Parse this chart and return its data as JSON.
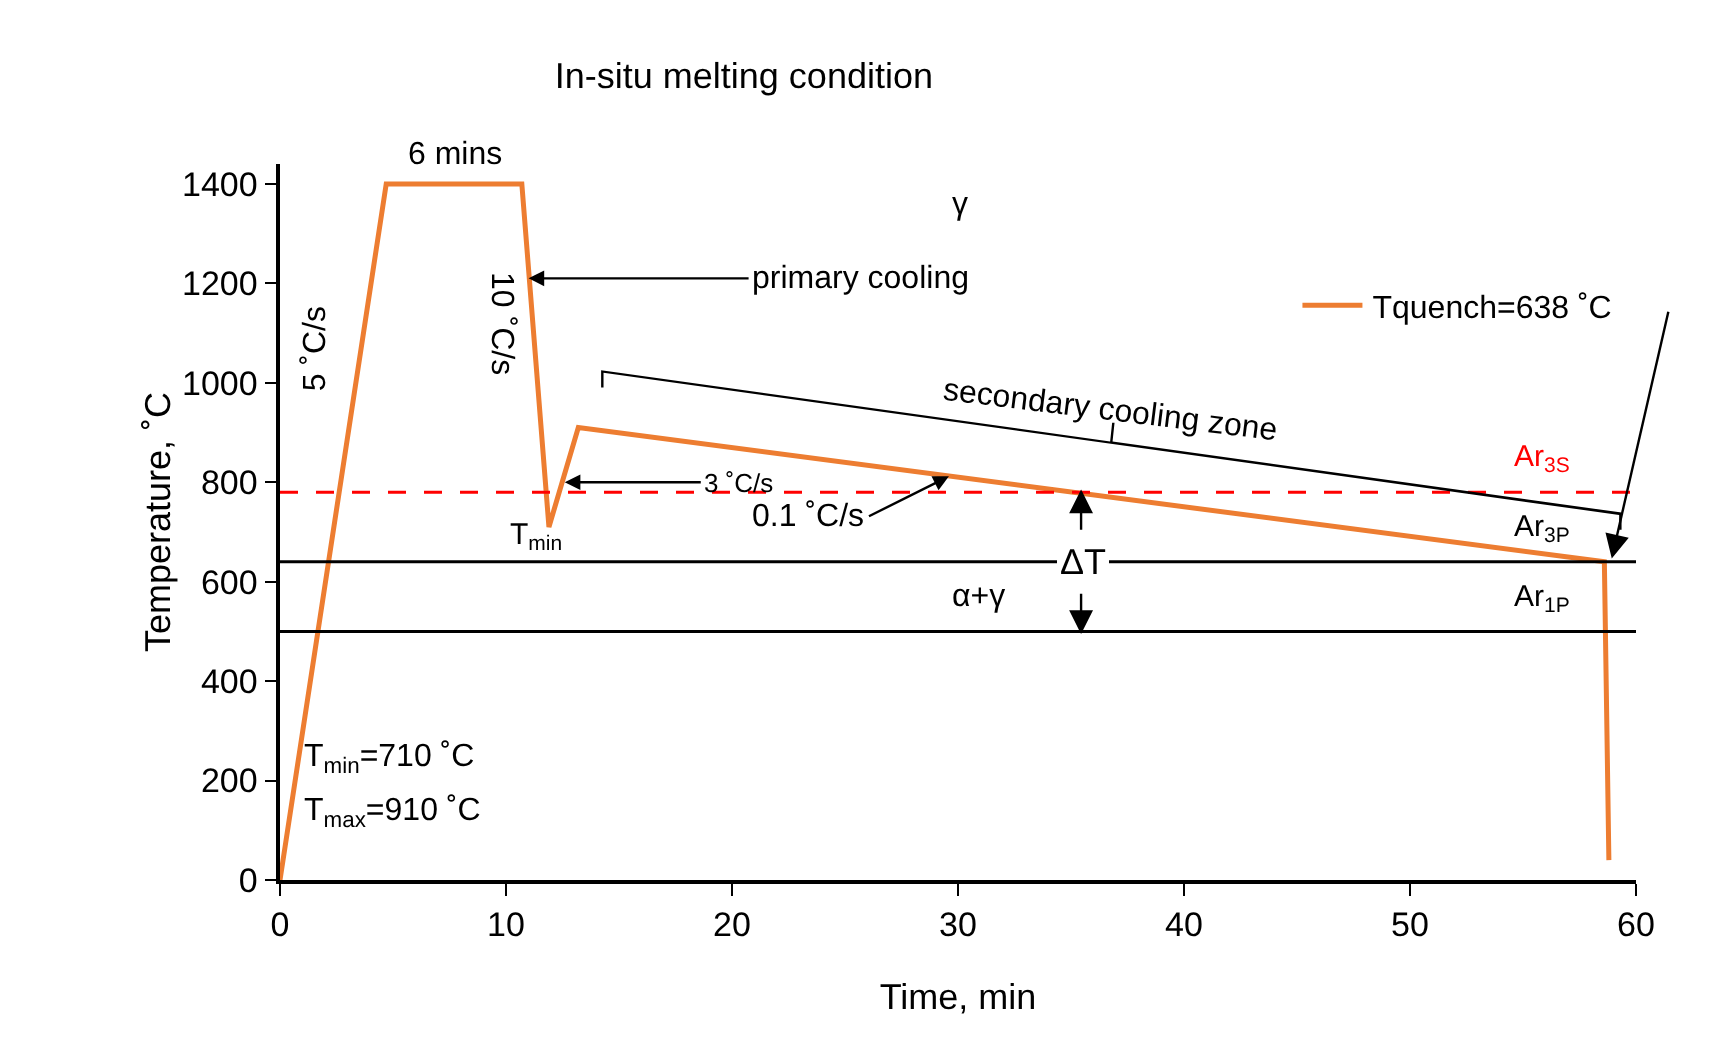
{
  "chart_data": {
    "type": "line",
    "title": "In-situ melting condition",
    "xlabel": "Time, min",
    "ylabel": "Temperature, ˚C",
    "series": [
      {
        "name": "Tquench=638 ˚C",
        "color": "#ed7d31",
        "x": [
          0,
          4.7,
          10.7,
          11.9,
          13.2,
          58.6,
          58.8
        ],
        "values": [
          0,
          1400,
          1400,
          710,
          910,
          640,
          40
        ]
      }
    ],
    "xlim": [
      0,
      60
    ],
    "xticks": [
      0,
      10,
      20,
      30,
      40,
      50,
      60
    ],
    "ylim": [
      0,
      1440
    ],
    "yticks": [
      0,
      200,
      400,
      600,
      800,
      1000,
      1200,
      1400
    ],
    "grid": false,
    "legend": "top right",
    "marker": "none",
    "line_style": "solid",
    "ref_lines": [
      {
        "axis": "y",
        "value": 780,
        "label": "Ar$_{3S}$",
        "color": "#ff0000",
        "line_style": "dashed"
      },
      {
        "axis": "y",
        "value": 640,
        "label": "Ar$_{3P}$",
        "color": "#000000",
        "line_style": "solid"
      },
      {
        "axis": "y",
        "value": 500,
        "label": "Ar$_{1P}$",
        "color": "#000000",
        "line_style": "solid"
      }
    ],
    "annotations": [
      {
        "text": "6 mins",
        "x": 7.7,
        "y": 1400
      },
      {
        "text": "5 ˚C/s",
        "x": 3.6,
        "y": 1070
      },
      {
        "text": "10 ˚C/s",
        "x": 11.2,
        "y": 1120
      },
      {
        "text": "primary cooling",
        "x": 11.0,
        "y": 1210
      },
      {
        "text": "3 ˚C/s",
        "x": 12.6,
        "y": 800
      },
      {
        "text": "T$_{min}$",
        "x": 11.9,
        "y": 710
      },
      {
        "text": "0.1 ˚C/s",
        "x": 29.6,
        "y": 812
      },
      "secondary cooling zone",
      "γ",
      "α+γ",
      {
        "text": "ΔT",
        "x": 35.5,
        "y": 640
      },
      "T$_{min}$=710 ˚C",
      "T$_{max}$=910 ˚C"
    ]
  }
}
